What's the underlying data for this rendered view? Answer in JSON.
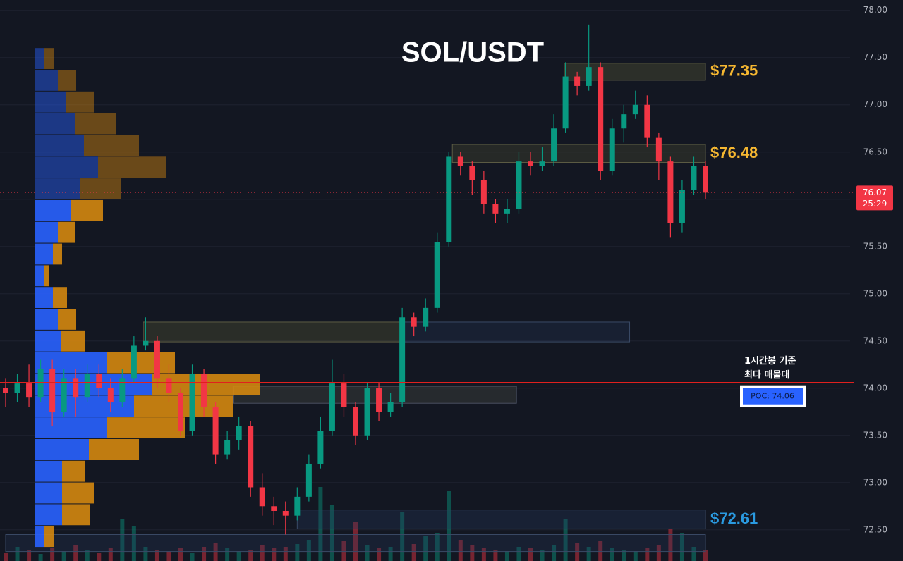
{
  "chart_data": {
    "type": "candlestick",
    "title": "SOL/USDT",
    "ylim": [
      72.17,
      78.11
    ],
    "yticks": [
      {
        "value": 72.5,
        "label": "72.50"
      },
      {
        "value": 73,
        "label": "73.00"
      },
      {
        "value": 73.5,
        "label": "73.50"
      },
      {
        "value": 74,
        "label": "74.00"
      },
      {
        "value": 74.5,
        "label": "74.50"
      },
      {
        "value": 75,
        "label": "75.00"
      },
      {
        "value": 75.5,
        "label": "75.50"
      },
      {
        "value": 76,
        "label": "76.00"
      },
      {
        "value": 76.5,
        "label": "76.50"
      },
      {
        "value": 77,
        "label": "77.00"
      },
      {
        "value": 77.5,
        "label": "77.50"
      },
      {
        "value": 78,
        "label": "78.00"
      }
    ],
    "grid": true,
    "up_color": "#089981",
    "down_color": "#f23645",
    "open": [
      74.0,
      73.95,
      74.05,
      73.9,
      74.2,
      73.75,
      74.1,
      73.9,
      74.15,
      74.0,
      73.85,
      74.1,
      74.45,
      74.5,
      74.1,
      73.95,
      73.55,
      74.15,
      73.8,
      73.3,
      73.45,
      73.6,
      72.95,
      72.75,
      72.7,
      72.65,
      72.85,
      73.2,
      73.55,
      74.05,
      73.8,
      73.5,
      74.0,
      73.75,
      73.85,
      74.75,
      74.65,
      74.85,
      75.55,
      76.45,
      76.35,
      76.2,
      75.95,
      75.85,
      75.9,
      76.4,
      76.35,
      76.4,
      76.75,
      77.3,
      77.2,
      77.4,
      76.3,
      76.75,
      76.9,
      77.0,
      76.65,
      76.4,
      75.75,
      76.1,
      76.35
    ],
    "high": [
      74.1,
      74.15,
      74.25,
      74.3,
      74.3,
      74.2,
      74.2,
      74.25,
      74.25,
      74.1,
      74.2,
      74.55,
      74.75,
      74.55,
      74.25,
      74.0,
      74.25,
      74.2,
      73.85,
      73.55,
      73.7,
      73.65,
      73.1,
      72.85,
      72.8,
      72.95,
      73.3,
      73.7,
      74.3,
      74.15,
      73.85,
      74.05,
      74.05,
      73.95,
      74.85,
      74.8,
      74.95,
      75.65,
      76.5,
      76.5,
      76.4,
      76.3,
      76.0,
      76.0,
      76.5,
      76.5,
      76.55,
      76.9,
      77.45,
      77.35,
      77.85,
      77.45,
      76.85,
      77.0,
      77.15,
      77.1,
      76.7,
      76.45,
      76.2,
      76.45,
      76.4
    ],
    "low": [
      73.8,
      73.85,
      73.8,
      73.85,
      73.6,
      73.7,
      73.7,
      73.85,
      73.9,
      73.75,
      73.8,
      74.05,
      74.4,
      74.0,
      73.85,
      73.5,
      73.5,
      73.7,
      73.2,
      73.25,
      73.35,
      72.85,
      72.65,
      72.55,
      72.45,
      72.6,
      72.8,
      73.15,
      73.5,
      73.7,
      73.4,
      73.45,
      73.65,
      73.7,
      73.8,
      74.55,
      74.6,
      74.8,
      75.5,
      76.25,
      76.05,
      75.85,
      75.75,
      75.75,
      75.85,
      76.25,
      76.3,
      76.35,
      76.7,
      77.1,
      77.15,
      76.2,
      76.25,
      76.6,
      76.85,
      76.55,
      76.2,
      75.6,
      75.65,
      76.05,
      76.0
    ],
    "close": [
      73.95,
      74.05,
      73.9,
      74.2,
      73.75,
      74.1,
      73.9,
      74.15,
      74.0,
      73.85,
      74.1,
      74.45,
      74.5,
      74.1,
      73.95,
      73.55,
      74.15,
      73.8,
      73.3,
      73.45,
      73.6,
      72.95,
      72.75,
      72.7,
      72.65,
      72.85,
      73.2,
      73.55,
      74.05,
      73.8,
      73.5,
      74.0,
      73.75,
      73.85,
      74.75,
      74.65,
      74.85,
      75.55,
      76.45,
      76.35,
      76.2,
      75.95,
      75.85,
      75.9,
      76.4,
      76.35,
      76.4,
      76.75,
      77.3,
      77.2,
      77.4,
      76.3,
      76.75,
      76.9,
      77.0,
      76.65,
      76.4,
      75.75,
      76.1,
      76.35,
      76.07
    ],
    "volume": [
      12,
      20,
      15,
      10,
      18,
      14,
      22,
      16,
      12,
      18,
      60,
      50,
      20,
      15,
      14,
      18,
      12,
      20,
      25,
      18,
      14,
      16,
      22,
      18,
      20,
      24,
      30,
      105,
      80,
      28,
      55,
      22,
      18,
      20,
      70,
      24,
      35,
      40,
      100,
      30,
      22,
      18,
      16,
      14,
      20,
      18,
      16,
      22,
      60,
      25,
      20,
      28,
      18,
      16,
      14,
      18,
      22,
      45,
      40,
      20,
      16
    ],
    "volume_profile": {
      "prices": [
        77.49,
        77.26,
        77.03,
        76.8,
        76.57,
        76.34,
        76.11,
        75.88,
        75.65,
        75.42,
        75.19,
        74.96,
        74.73,
        74.5,
        74.27,
        74.04,
        73.81,
        73.58,
        73.35,
        73.12,
        72.89,
        72.66,
        72.43
      ],
      "buy": [
        12,
        32,
        44,
        57,
        69,
        89,
        63,
        50,
        32,
        25,
        12,
        25,
        32,
        37,
        102,
        165,
        140,
        102,
        76,
        38,
        38,
        38,
        12
      ],
      "sell": [
        14,
        26,
        39,
        58,
        78,
        96,
        58,
        46,
        25,
        13,
        8,
        20,
        26,
        33,
        96,
        154,
        140,
        110,
        71,
        32,
        45,
        39,
        14
      ],
      "buy_color": "#2962ff",
      "sell_color": "#d4870f"
    },
    "zones": [
      {
        "top": 77.44,
        "bottom": 77.26,
        "from": 47.9,
        "to": 60,
        "fill": "rgba(110,110,60,0.28)",
        "stroke": "#5c5c44",
        "level": {
          "value": 77.35,
          "label": "$77.35"
        },
        "color": "#f5b731"
      },
      {
        "top": 76.58,
        "bottom": 76.39,
        "from": 38.3,
        "to": 60,
        "fill": "rgba(110,110,60,0.22)",
        "stroke": "#5c5c44",
        "level": {
          "value": 76.48,
          "label": "$76.48"
        },
        "color": "#f5b731"
      },
      {
        "top": 74.7,
        "bottom": 74.49,
        "from": 11.8,
        "to": 34.2,
        "fill": "rgba(110,110,60,0.25)",
        "stroke": "#5c5c44"
      },
      {
        "top": 74.7,
        "bottom": 74.49,
        "from": 34.2,
        "to": 53.5,
        "fill": "rgba(40,60,100,0.25)",
        "stroke": "#3a4a66"
      },
      {
        "top": 74.02,
        "bottom": 73.84,
        "from": 19.5,
        "to": 43.8,
        "fill": "rgba(90,95,80,0.28)",
        "stroke": "#4a5060"
      },
      {
        "top": 72.71,
        "bottom": 72.51,
        "from": 25,
        "to": 60,
        "fill": "rgba(40,60,100,0.28)",
        "stroke": "#3a4a66",
        "level": {
          "value": 72.61,
          "label": "$72.61"
        },
        "color": "#2a9ae0"
      },
      {
        "top": 72.45,
        "bottom": 72.27,
        "from": 0,
        "to": 60,
        "fill": "rgba(40,60,100,0.25)",
        "stroke": "#3a4a66"
      }
    ],
    "poc": {
      "value": 74.06,
      "label": "POC: 74.06"
    },
    "annotation": [
      "1시간봉 기준",
      "최다 매물대"
    ],
    "last_price": 76.07,
    "countdown": "25:29"
  }
}
